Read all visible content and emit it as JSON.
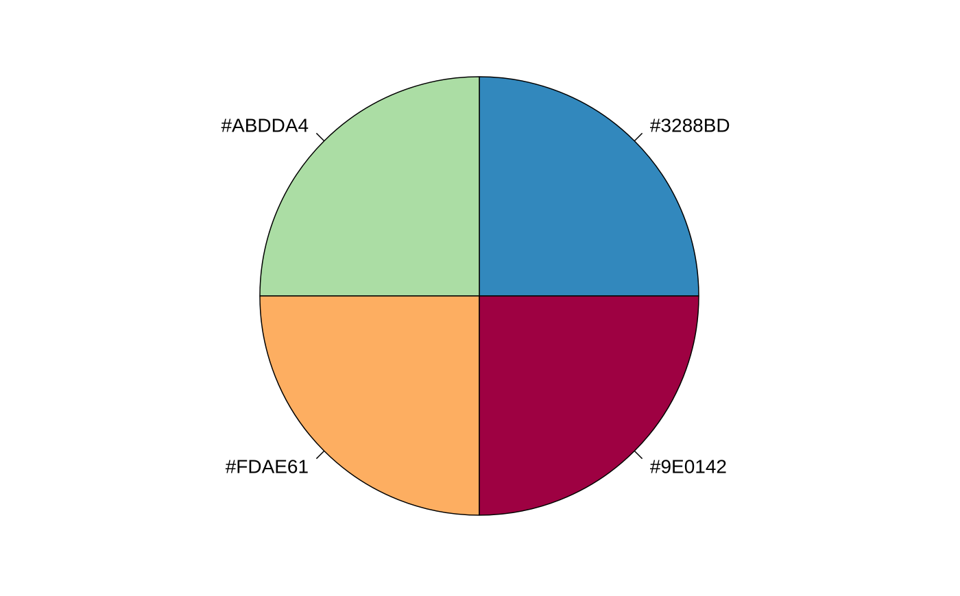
{
  "chart_data": {
    "type": "pie",
    "title": "",
    "slices": [
      {
        "label": "#3288BD",
        "value": 1,
        "color": "#3288BD"
      },
      {
        "label": "#ABDDA4",
        "value": 1,
        "color": "#ABDDA4"
      },
      {
        "label": "#FDAE61",
        "value": 1,
        "color": "#FDAE61"
      },
      {
        "label": "#9E0142",
        "value": 1,
        "color": "#9E0142"
      }
    ],
    "start_angle_deg": 0,
    "direction": "counterclockwise",
    "border_color": "#000000",
    "background": "#FFFFFF",
    "legend": "none"
  }
}
